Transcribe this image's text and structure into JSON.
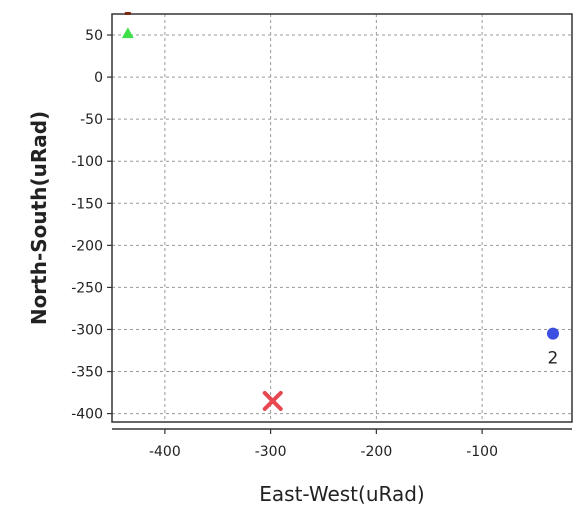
{
  "chart_data": {
    "type": "scatter",
    "xlabel": "East-West(uRad)",
    "ylabel": "North-South(uRad)",
    "xlim": [
      -450,
      -15
    ],
    "ylim": [
      -410,
      75
    ],
    "x_ticks": [
      -400,
      -300,
      -200,
      -100
    ],
    "y_ticks": [
      50,
      0,
      -50,
      -100,
      -150,
      -200,
      -250,
      -300,
      -350,
      -400
    ],
    "grid": true,
    "points": [
      {
        "x": -435,
        "y": 52,
        "marker": "triangle",
        "color": "#3ee04a",
        "label": ""
      },
      {
        "x": -298,
        "y": -385,
        "marker": "x",
        "color": "#e8474f",
        "label": ""
      },
      {
        "x": -33,
        "y": -305,
        "marker": "circle",
        "color": "#3b4fe0",
        "label": "2"
      },
      {
        "x": -435,
        "y": 78,
        "marker": "square",
        "color": "#7a2a10",
        "label": ""
      }
    ]
  }
}
